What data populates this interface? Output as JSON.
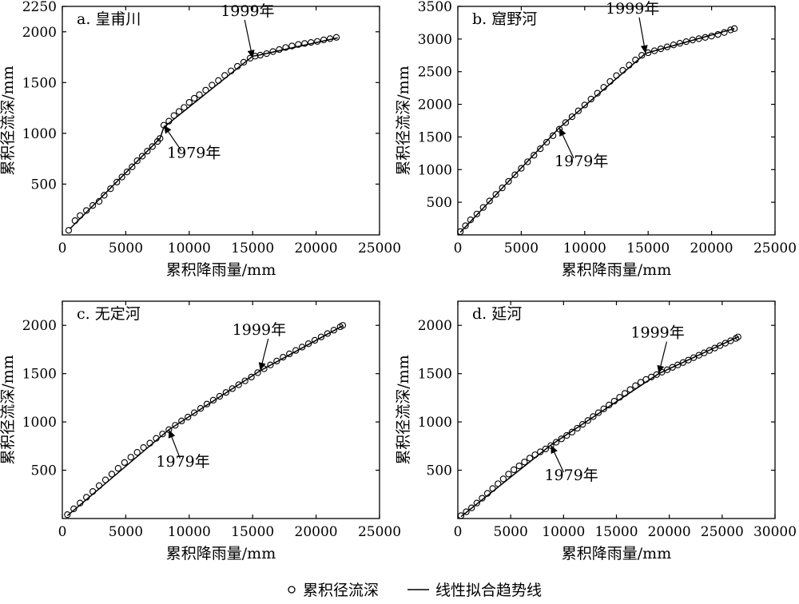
{
  "legend": {
    "marker_label": "累积径流深",
    "line_label": "线性拟合趋势线"
  },
  "chart_data": [
    {
      "type": "scatter",
      "title": "a. 皇甫川",
      "xlabel": "累积降雨量/mm",
      "ylabel": "累积径流深/mm",
      "xlim": [
        0,
        25000
      ],
      "ylim": [
        0,
        2250
      ],
      "xticks": [
        0,
        5000,
        10000,
        15000,
        20000,
        25000
      ],
      "yticks": [
        500,
        1000,
        1500,
        2000,
        2250
      ],
      "series": [
        {
          "points": [
            [
              500,
              45
            ],
            [
              1000,
              140
            ],
            [
              1400,
              190
            ],
            [
              1900,
              240
            ],
            [
              2400,
              290
            ],
            [
              2900,
              330
            ],
            [
              3300,
              390
            ],
            [
              3800,
              455
            ],
            [
              4300,
              520
            ],
            [
              4700,
              570
            ],
            [
              5100,
              620
            ],
            [
              5500,
              670
            ],
            [
              5900,
              730
            ],
            [
              6300,
              775
            ],
            [
              6700,
              825
            ],
            [
              7100,
              870
            ],
            [
              7500,
              920
            ],
            [
              7700,
              950
            ],
            [
              8000,
              1080
            ],
            [
              8400,
              1120
            ],
            [
              8800,
              1175
            ],
            [
              9200,
              1215
            ],
            [
              9600,
              1255
            ],
            [
              10000,
              1305
            ],
            [
              10400,
              1345
            ],
            [
              10800,
              1380
            ],
            [
              11300,
              1425
            ],
            [
              11800,
              1475
            ],
            [
              12300,
              1520
            ],
            [
              12800,
              1570
            ],
            [
              13300,
              1615
            ],
            [
              13800,
              1660
            ],
            [
              14300,
              1700
            ],
            [
              14800,
              1740
            ],
            [
              15200,
              1760
            ],
            [
              15600,
              1770
            ],
            [
              16100,
              1785
            ],
            [
              16600,
              1805
            ],
            [
              17100,
              1825
            ],
            [
              17600,
              1845
            ],
            [
              18100,
              1860
            ],
            [
              18600,
              1875
            ],
            [
              19100,
              1885
            ],
            [
              19600,
              1895
            ],
            [
              20100,
              1905
            ],
            [
              20600,
              1920
            ],
            [
              21100,
              1932
            ],
            [
              21600,
              1945
            ]
          ],
          "trend": [
            [
              600,
              60
            ],
            [
              7700,
              950
            ],
            [
              8000,
              1060
            ],
            [
              15000,
              1760
            ],
            [
              15500,
              1770
            ],
            [
              21700,
              1940
            ]
          ]
        }
      ],
      "annotations": [
        {
          "text": "1999年",
          "point": [
            15000,
            1740
          ]
        },
        {
          "text": "1979年",
          "point": [
            8000,
            1080
          ]
        }
      ]
    },
    {
      "type": "scatter",
      "title": "b. 窟野河",
      "xlabel": "累积降雨量/mm",
      "ylabel": "累积径流深/mm",
      "xlim": [
        0,
        25000
      ],
      "ylim": [
        0,
        3500
      ],
      "xticks": [
        0,
        5000,
        10000,
        15000,
        20000,
        25000
      ],
      "yticks": [
        500,
        1000,
        1500,
        2000,
        2500,
        3000,
        3500
      ],
      "series": [
        {
          "points": [
            [
              200,
              50
            ],
            [
              600,
              140
            ],
            [
              1000,
              230
            ],
            [
              1500,
              320
            ],
            [
              2000,
              420
            ],
            [
              2500,
              520
            ],
            [
              3000,
              620
            ],
            [
              3500,
              720
            ],
            [
              4000,
              820
            ],
            [
              4500,
              920
            ],
            [
              5000,
              1020
            ],
            [
              5500,
              1120
            ],
            [
              6000,
              1220
            ],
            [
              6500,
              1320
            ],
            [
              7000,
              1420
            ],
            [
              7500,
              1520
            ],
            [
              8000,
              1620
            ],
            [
              8500,
              1720
            ],
            [
              9000,
              1810
            ],
            [
              9500,
              1900
            ],
            [
              10000,
              1990
            ],
            [
              10500,
              2080
            ],
            [
              11000,
              2170
            ],
            [
              11500,
              2260
            ],
            [
              12000,
              2350
            ],
            [
              12500,
              2440
            ],
            [
              13000,
              2520
            ],
            [
              13500,
              2600
            ],
            [
              14000,
              2680
            ],
            [
              14500,
              2750
            ],
            [
              15000,
              2790
            ],
            [
              15500,
              2820
            ],
            [
              16000,
              2850
            ],
            [
              16500,
              2880
            ],
            [
              17000,
              2910
            ],
            [
              17500,
              2935
            ],
            [
              18000,
              2960
            ],
            [
              18500,
              2985
            ],
            [
              19000,
              3005
            ],
            [
              19500,
              3025
            ],
            [
              20000,
              3045
            ],
            [
              20500,
              3070
            ],
            [
              21000,
              3100
            ],
            [
              21500,
              3140
            ],
            [
              21800,
              3160
            ]
          ],
          "trend": [
            [
              200,
              40
            ],
            [
              8000,
              1640
            ],
            [
              14800,
              2780
            ],
            [
              21800,
              3160
            ]
          ]
        }
      ],
      "annotations": [
        {
          "text": "1999年",
          "point": [
            14800,
            2780
          ]
        },
        {
          "text": "1979年",
          "point": [
            8000,
            1640
          ]
        }
      ]
    },
    {
      "type": "scatter",
      "title": "c. 无定河",
      "xlabel": "累积降雨量/mm",
      "ylabel": "累积径流深/mm",
      "xlim": [
        0,
        25000
      ],
      "ylim": [
        0,
        2250
      ],
      "xticks": [
        0,
        5000,
        10000,
        15000,
        20000,
        25000
      ],
      "yticks": [
        500,
        1000,
        1500,
        2000
      ],
      "series": [
        {
          "points": [
            [
              400,
              40
            ],
            [
              900,
              100
            ],
            [
              1400,
              160
            ],
            [
              1900,
              220
            ],
            [
              2400,
              280
            ],
            [
              2900,
              340
            ],
            [
              3400,
              400
            ],
            [
              3900,
              460
            ],
            [
              4400,
              520
            ],
            [
              4900,
              580
            ],
            [
              5400,
              635
            ],
            [
              5900,
              685
            ],
            [
              6400,
              735
            ],
            [
              6900,
              780
            ],
            [
              7400,
              830
            ],
            [
              7900,
              875
            ],
            [
              8400,
              920
            ],
            [
              8900,
              965
            ],
            [
              9400,
              1010
            ],
            [
              9900,
              1050
            ],
            [
              10400,
              1095
            ],
            [
              10900,
              1140
            ],
            [
              11400,
              1185
            ],
            [
              11900,
              1225
            ],
            [
              12400,
              1265
            ],
            [
              12900,
              1305
            ],
            [
              13400,
              1345
            ],
            [
              13900,
              1385
            ],
            [
              14400,
              1425
            ],
            [
              14900,
              1465
            ],
            [
              15400,
              1510
            ],
            [
              15900,
              1550
            ],
            [
              16400,
              1590
            ],
            [
              16900,
              1630
            ],
            [
              17400,
              1670
            ],
            [
              17900,
              1705
            ],
            [
              18400,
              1740
            ],
            [
              18900,
              1775
            ],
            [
              19400,
              1810
            ],
            [
              19900,
              1845
            ],
            [
              20400,
              1880
            ],
            [
              20900,
              1915
            ],
            [
              21400,
              1950
            ],
            [
              21900,
              1985
            ],
            [
              22100,
              2000
            ]
          ],
          "trend": [
            [
              400,
              30
            ],
            [
              8400,
              920
            ],
            [
              15600,
              1530
            ],
            [
              22100,
              1995
            ]
          ]
        }
      ],
      "annotations": [
        {
          "text": "1999年",
          "point": [
            15600,
            1530
          ]
        },
        {
          "text": "1979年",
          "point": [
            8400,
            920
          ]
        }
      ]
    },
    {
      "type": "scatter",
      "title": "d. 延河",
      "xlabel": "累积降雨量/mm",
      "ylabel": "累积径流深/mm",
      "xlim": [
        0,
        30000
      ],
      "ylim": [
        0,
        2250
      ],
      "xticks": [
        0,
        5000,
        10000,
        15000,
        20000,
        25000,
        30000
      ],
      "yticks": [
        500,
        1000,
        1500,
        2000
      ],
      "series": [
        {
          "points": [
            [
              300,
              30
            ],
            [
              800,
              70
            ],
            [
              1300,
              110
            ],
            [
              1800,
              160
            ],
            [
              2300,
              210
            ],
            [
              2800,
              260
            ],
            [
              3300,
              310
            ],
            [
              3800,
              360
            ],
            [
              4300,
              410
            ],
            [
              4800,
              460
            ],
            [
              5300,
              505
            ],
            [
              5800,
              545
            ],
            [
              6300,
              585
            ],
            [
              6800,
              625
            ],
            [
              7300,
              660
            ],
            [
              7800,
              690
            ],
            [
              8300,
              720
            ],
            [
              8800,
              755
            ],
            [
              9300,
              790
            ],
            [
              9800,
              825
            ],
            [
              10300,
              860
            ],
            [
              10800,
              895
            ],
            [
              11300,
              935
            ],
            [
              11800,
              975
            ],
            [
              12300,
              1015
            ],
            [
              12800,
              1055
            ],
            [
              13300,
              1095
            ],
            [
              13800,
              1135
            ],
            [
              14300,
              1175
            ],
            [
              14800,
              1215
            ],
            [
              15300,
              1255
            ],
            [
              15800,
              1295
            ],
            [
              16300,
              1335
            ],
            [
              16800,
              1375
            ],
            [
              17300,
              1410
            ],
            [
              17800,
              1440
            ],
            [
              18300,
              1465
            ],
            [
              18800,
              1490
            ],
            [
              19300,
              1515
            ],
            [
              19800,
              1540
            ],
            [
              20300,
              1565
            ],
            [
              20800,
              1590
            ],
            [
              21300,
              1615
            ],
            [
              21800,
              1640
            ],
            [
              22300,
              1665
            ],
            [
              22800,
              1690
            ],
            [
              23300,
              1715
            ],
            [
              23800,
              1740
            ],
            [
              24300,
              1765
            ],
            [
              24800,
              1790
            ],
            [
              25300,
              1815
            ],
            [
              25800,
              1840
            ],
            [
              26300,
              1865
            ],
            [
              26500,
              1880
            ]
          ],
          "trend": [
            [
              300,
              20
            ],
            [
              8800,
              760
            ],
            [
              19000,
              1500
            ],
            [
              26500,
              1880
            ]
          ]
        }
      ],
      "annotations": [
        {
          "text": "1999年",
          "point": [
            19000,
            1500
          ]
        },
        {
          "text": "1979年",
          "point": [
            8800,
            760
          ]
        }
      ]
    }
  ]
}
